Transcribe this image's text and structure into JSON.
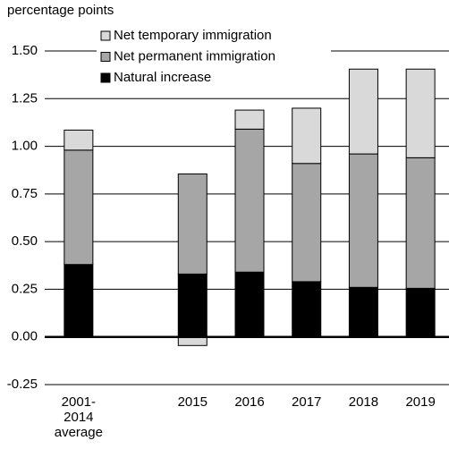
{
  "chart_data": {
    "type": "stacked-bar",
    "y_axis_title": "percentage points",
    "categories": [
      "2001-\n2014\naverage",
      null,
      "2015",
      "2016",
      "2017",
      "2018",
      "2019"
    ],
    "series": [
      {
        "name": "Natural increase",
        "color": "#000000",
        "values": [
          0.38,
          null,
          0.33,
          0.34,
          0.29,
          0.26,
          0.255
        ]
      },
      {
        "name": "Net permanent immigration",
        "color": "#a6a6a6",
        "values": [
          0.6,
          null,
          0.525,
          0.75,
          0.62,
          0.7,
          0.685
        ]
      },
      {
        "name": "Net temporary immigration",
        "color": "#d9d9d9",
        "values": [
          0.105,
          null,
          -0.045,
          0.1,
          0.29,
          0.445,
          0.465
        ]
      }
    ],
    "ylim": [
      -0.25,
      1.5
    ],
    "yticks": [
      {
        "value": -0.25,
        "label": "-0.25"
      },
      {
        "value": 0,
        "label": "0.00"
      },
      {
        "value": 0.25,
        "label": "0.25"
      },
      {
        "value": 0.5,
        "label": "0.50"
      },
      {
        "value": 0.75,
        "label": "0.75"
      },
      {
        "value": 1,
        "label": "1.00"
      },
      {
        "value": 1.25,
        "label": "1.25"
      },
      {
        "value": 1.5,
        "label": "1.50"
      }
    ],
    "grid": true
  }
}
